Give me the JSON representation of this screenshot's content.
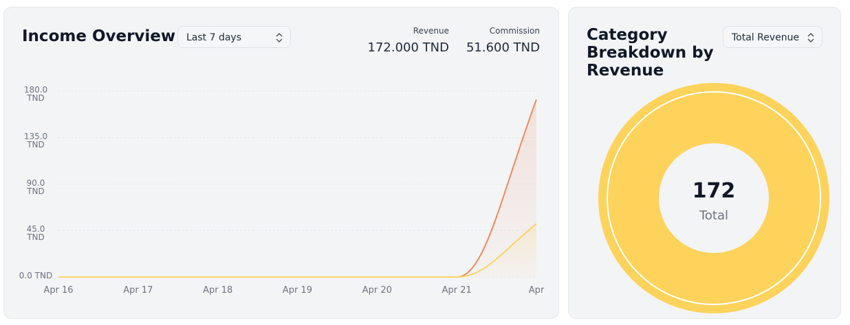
{
  "chart_data": [
    {
      "type": "line",
      "title": "Income Overview",
      "selector": "Last 7 days",
      "summary": [
        {
          "label": "Revenue",
          "value": "172.000 TND"
        },
        {
          "label": "Commission",
          "value": "51.600 TND"
        }
      ],
      "categories": [
        "Apr 16",
        "Apr 17",
        "Apr 18",
        "Apr 19",
        "Apr 20",
        "Apr 21",
        "Apr"
      ],
      "series": [
        {
          "name": "Revenue",
          "color": "#f08a5d",
          "values": [
            0,
            0,
            0,
            0,
            0,
            0,
            172
          ]
        },
        {
          "name": "Commission",
          "color": "#fcd462",
          "values": [
            0,
            0,
            0,
            0,
            0,
            0,
            51.6
          ]
        }
      ],
      "ylim": [
        0,
        180
      ],
      "yticks": [
        {
          "value": 0,
          "label": "0.0 TND"
        },
        {
          "value": 45,
          "label": "45.0 TND"
        },
        {
          "value": 90,
          "label": "90.0 TND"
        },
        {
          "value": 135,
          "label": "135.0 TND"
        },
        {
          "value": 180,
          "label": "180.0 TND"
        }
      ],
      "grid": true
    },
    {
      "type": "pie",
      "title": "Category Breakdown by Revenue",
      "selector": "Total Revenue",
      "categories": [
        null
      ],
      "values": [
        172
      ],
      "colors": [
        "#fdd35c"
      ],
      "center_label": "Total"
    }
  ]
}
